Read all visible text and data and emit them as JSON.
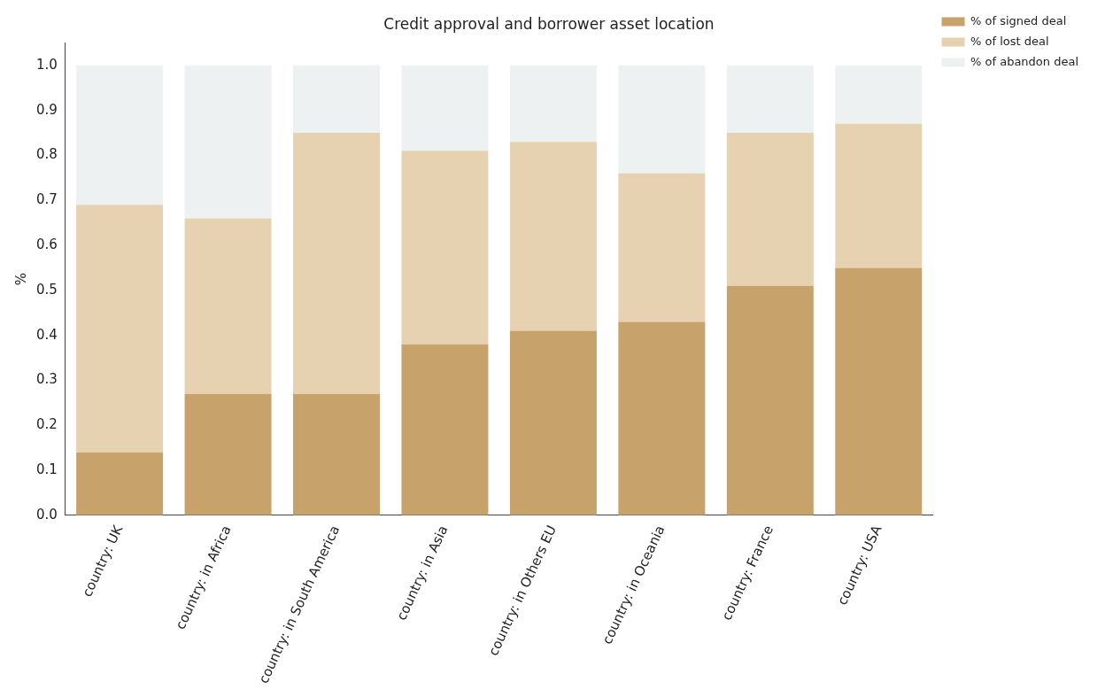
{
  "chart_data": {
    "type": "bar",
    "title": "Credit approval and borrower asset location",
    "ylabel": "%",
    "categories": [
      "country: UK",
      "country: in Africa",
      "country: in South America",
      "country: in Asia",
      "country: in Others EU",
      "country: in Oceania",
      "country: France",
      "country: USA"
    ],
    "series": [
      {
        "name": "% of signed deal",
        "color": "#c8a26b",
        "values": [
          0.14,
          0.27,
          0.27,
          0.38,
          0.41,
          0.43,
          0.51,
          0.55
        ]
      },
      {
        "name": "% of lost deal",
        "color": "#e6d1b1",
        "values": [
          0.55,
          0.39,
          0.58,
          0.43,
          0.42,
          0.33,
          0.34,
          0.32
        ]
      },
      {
        "name": "% of abandon deal",
        "color": "#edf1f1",
        "values": [
          0.31,
          0.34,
          0.15,
          0.19,
          0.17,
          0.24,
          0.15,
          0.13
        ]
      }
    ],
    "stacked": true,
    "ylim": [
      0,
      1.05
    ],
    "yticks": [
      {
        "value": 0,
        "label": "0.0"
      },
      0.1,
      0.2,
      0.3,
      0.4,
      0.5,
      0.6,
      0.7,
      0.8,
      0.9,
      {
        "value": 1,
        "label": "1.0"
      }
    ],
    "grid": false,
    "legend": "top right"
  }
}
